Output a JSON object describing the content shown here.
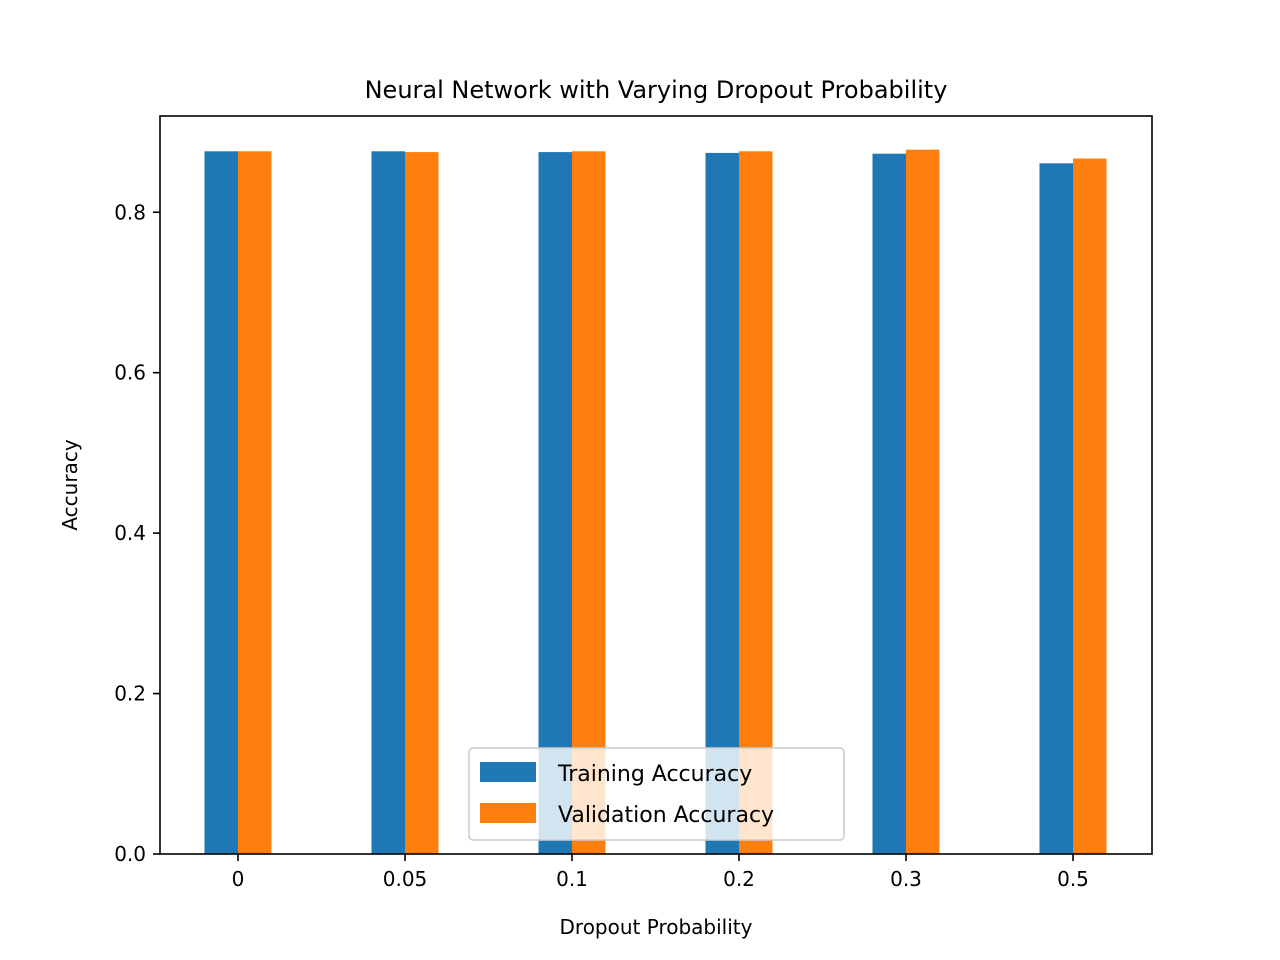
{
  "chart_data": {
    "type": "bar",
    "title": "Neural Network with Varying Dropout Probability",
    "xlabel": "Dropout Probability",
    "ylabel": "Accuracy",
    "categories": [
      "0",
      "0.05",
      "0.1",
      "0.2",
      "0.3",
      "0.5"
    ],
    "series": [
      {
        "name": "Training Accuracy",
        "color": "#1f77b4",
        "values": [
          0.876,
          0.876,
          0.875,
          0.874,
          0.873,
          0.861
        ]
      },
      {
        "name": "Validation Accuracy",
        "color": "#ff7f0e",
        "values": [
          0.876,
          0.875,
          0.876,
          0.876,
          0.878,
          0.867
        ]
      }
    ],
    "ylim": [
      0,
      0.92
    ],
    "yticks": [
      0.0,
      0.2,
      0.4,
      0.6,
      0.8
    ],
    "ytick_labels": [
      "0.0",
      "0.2",
      "0.4",
      "0.6",
      "0.8"
    ],
    "grid": false,
    "legend_position": "lower-center"
  }
}
